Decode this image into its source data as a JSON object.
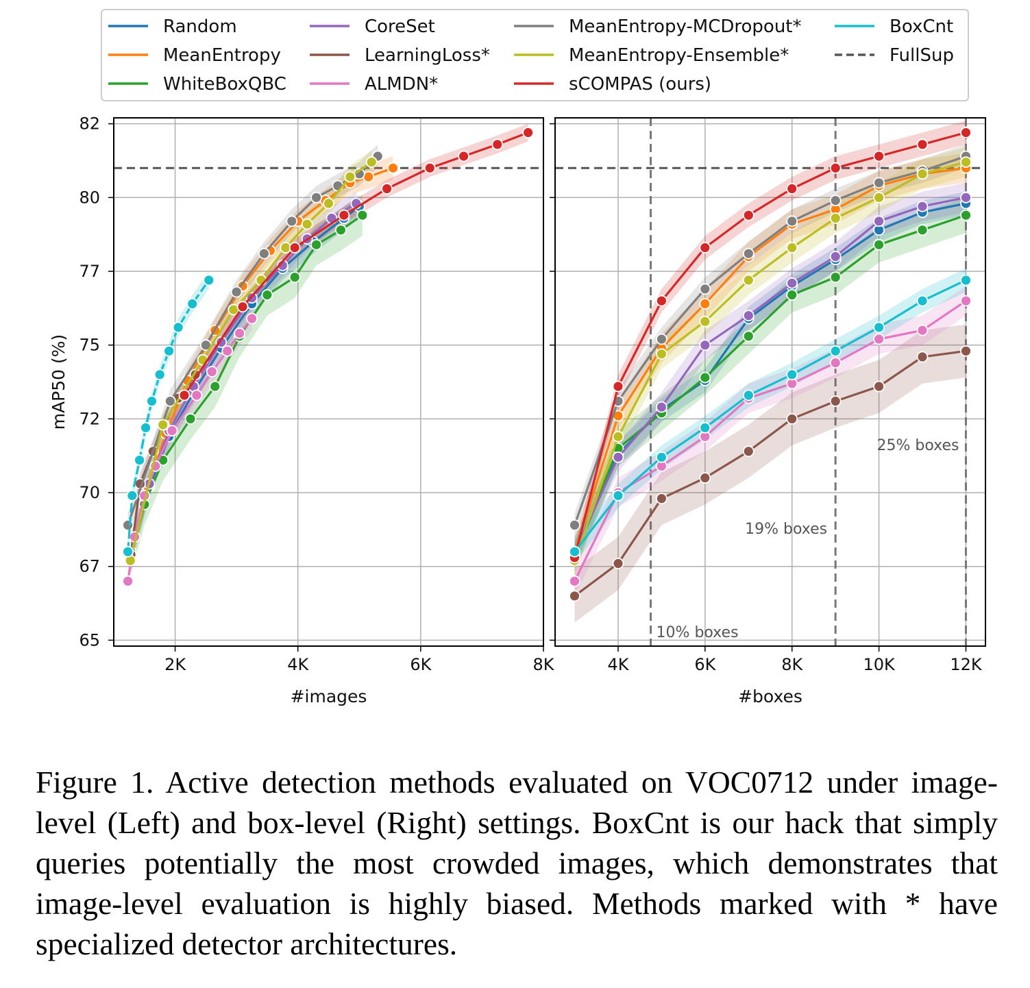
{
  "chart_data": [
    {
      "type": "line",
      "panel": "left",
      "xlabel": "#images",
      "ylabel": "mAP50 (%)",
      "xlim": [
        1000,
        8000
      ],
      "ylim": [
        64.8,
        82.7
      ],
      "xticks": [
        2000,
        4000,
        6000,
        8000
      ],
      "xtick_labels": [
        "2K",
        "4K",
        "6K",
        "8K"
      ],
      "yticks": [
        65,
        67.5,
        70,
        72.5,
        75,
        77.5,
        80,
        82.5
      ],
      "ytick_labels": [
        "65",
        "67",
        "70",
        "72",
        "75",
        "77",
        "80",
        "82"
      ],
      "grid": true,
      "reference_lines": [
        {
          "name": "FullSup",
          "axis": "y",
          "value": 81.0,
          "color": "#555555",
          "style": "dashed"
        }
      ],
      "series": [
        {
          "name": "Random",
          "color": "#1f77b4",
          "band": 0.4,
          "x": [
            1280,
            1580,
            1900,
            2300,
            2750,
            3250,
            3750,
            4250,
            4750,
            5000
          ],
          "y": [
            67.9,
            70.2,
            71.9,
            73.4,
            74.9,
            76.4,
            77.6,
            78.5,
            79.3,
            79.7
          ]
        },
        {
          "name": "MeanEntropy",
          "color": "#ff7f0e",
          "band": 0.4,
          "x": [
            1280,
            1560,
            1850,
            2200,
            2650,
            3100,
            3550,
            4000,
            4450,
            4850,
            5150,
            5550
          ],
          "y": [
            68.0,
            70.2,
            72.0,
            73.8,
            75.5,
            77.0,
            78.2,
            79.2,
            79.9,
            80.5,
            80.7,
            81.0
          ]
        },
        {
          "name": "WhiteBoxQBC",
          "color": "#2ca02c",
          "band": 0.7,
          "x": [
            1280,
            1500,
            1800,
            2250,
            2650,
            3050,
            3500,
            3950,
            4300,
            4700,
            5050
          ],
          "y": [
            67.9,
            69.6,
            71.1,
            72.5,
            73.6,
            75.3,
            76.7,
            77.3,
            78.4,
            78.9,
            79.4
          ]
        },
        {
          "name": "CoreSet",
          "color": "#9467bd",
          "band": 0.4,
          "x": [
            1280,
            1580,
            1900,
            2300,
            2750,
            3250,
            3750,
            4150,
            4550,
            4950
          ],
          "y": [
            68.0,
            70.3,
            72.1,
            73.6,
            75.1,
            76.6,
            77.7,
            78.6,
            79.3,
            79.8
          ]
        },
        {
          "name": "LearningLoss*",
          "color": "#8c564b",
          "band": 0.4,
          "x": [
            1280,
            1430,
            1640,
            1820,
            2050,
            2330
          ],
          "y": [
            67.9,
            70.3,
            71.4,
            72.3,
            73.2,
            74.0
          ]
        },
        {
          "name": "ALMDN*",
          "color": "#e377c2",
          "band": 0.4,
          "x": [
            1230,
            1340,
            1500,
            1680,
            1950,
            2350,
            2600,
            2850,
            3050,
            3250
          ],
          "y": [
            67.0,
            68.5,
            69.9,
            70.9,
            72.1,
            73.3,
            74.1,
            74.8,
            75.4,
            75.9
          ]
        },
        {
          "name": "MeanEntropy-MCDropout*",
          "color": "#7f7f7f",
          "band": 0.4,
          "x": [
            1230,
            1920,
            2500,
            3000,
            3450,
            3900,
            4300,
            4650,
            5000,
            5300
          ],
          "y": [
            68.9,
            73.1,
            75.0,
            76.8,
            78.1,
            79.2,
            80.0,
            80.4,
            80.8,
            81.4
          ]
        },
        {
          "name": "MeanEntropy-Ensemble*",
          "color": "#bcbd22",
          "band": 0.4,
          "x": [
            1270,
            1800,
            2450,
            2950,
            3400,
            3800,
            4150,
            4500,
            4850,
            5200
          ],
          "y": [
            67.7,
            72.3,
            74.5,
            76.2,
            77.2,
            78.3,
            79.1,
            79.8,
            80.7,
            81.2
          ]
        },
        {
          "name": "sCOMPAS (ours)",
          "color": "#d62728",
          "band": 0.3,
          "x": [
            2150,
            3100,
            3950,
            4750,
            5450,
            6150,
            6700,
            7250,
            7750
          ],
          "y": [
            73.3,
            76.3,
            78.3,
            79.4,
            80.3,
            81.0,
            81.4,
            81.8,
            82.2
          ]
        },
        {
          "name": "BoxCnt",
          "color": "#17becf",
          "band": 0.3,
          "x": [
            1230,
            1300,
            1420,
            1520,
            1620,
            1750,
            1900,
            2050,
            2280,
            2550
          ],
          "y": [
            68.0,
            69.9,
            71.1,
            72.2,
            73.1,
            74.0,
            74.8,
            75.6,
            76.4,
            77.2
          ]
        }
      ]
    },
    {
      "type": "line",
      "panel": "right",
      "xlabel": "#boxes",
      "ylabel": "",
      "xlim": [
        2550,
        12450
      ],
      "ylim": [
        64.8,
        82.7
      ],
      "xticks": [
        4000,
        6000,
        8000,
        10000,
        12000
      ],
      "xtick_labels": [
        "4K",
        "6K",
        "8K",
        "10K",
        "12K"
      ],
      "grid": true,
      "reference_lines": [
        {
          "name": "FullSup",
          "axis": "y",
          "value": 81.0,
          "color": "#555555",
          "style": "dashed"
        },
        {
          "axis": "x",
          "value": 4750,
          "color": "#777777",
          "style": "dashed",
          "label": "10% boxes"
        },
        {
          "axis": "x",
          "value": 9000,
          "color": "#777777",
          "style": "dashed",
          "label": "19% boxes"
        },
        {
          "axis": "x",
          "value": 12000,
          "color": "#777777",
          "style": "dashed",
          "label": "25% boxes"
        }
      ],
      "annotations": [
        "10% boxes",
        "19% boxes",
        "25% boxes"
      ],
      "series": [
        {
          "name": "Random",
          "color": "#1f77b4",
          "band": 0.4,
          "x": [
            3000,
            4000,
            5000,
            6000,
            7000,
            8000,
            9000,
            10000,
            11000,
            12000
          ],
          "y": [
            67.9,
            71.3,
            72.8,
            73.8,
            75.9,
            77.0,
            77.9,
            78.9,
            79.5,
            79.8
          ]
        },
        {
          "name": "MeanEntropy",
          "color": "#ff7f0e",
          "band": 0.5,
          "x": [
            3000,
            4000,
            5000,
            6000,
            7000,
            8000,
            9000,
            10000,
            11000,
            12000
          ],
          "y": [
            68.0,
            72.6,
            74.9,
            76.4,
            78.0,
            79.1,
            79.6,
            80.4,
            80.8,
            81.0
          ]
        },
        {
          "name": "WhiteBoxQBC",
          "color": "#2ca02c",
          "band": 0.6,
          "x": [
            3000,
            4000,
            5000,
            6000,
            7000,
            8000,
            9000,
            10000,
            11000,
            12000
          ],
          "y": [
            67.9,
            71.5,
            72.7,
            73.9,
            75.3,
            76.7,
            77.3,
            78.4,
            78.9,
            79.4
          ]
        },
        {
          "name": "CoreSet",
          "color": "#9467bd",
          "band": 0.5,
          "x": [
            3000,
            4000,
            5000,
            6000,
            7000,
            8000,
            9000,
            10000,
            11000,
            12000
          ],
          "y": [
            68.0,
            71.2,
            72.9,
            75.0,
            76.0,
            77.1,
            78.0,
            79.2,
            79.7,
            80.0
          ]
        },
        {
          "name": "LearningLoss*",
          "color": "#8c564b",
          "band": 0.9,
          "x": [
            3000,
            4000,
            5000,
            6000,
            7000,
            8000,
            9000,
            10000,
            11000,
            12000
          ],
          "y": [
            66.5,
            67.6,
            69.8,
            70.5,
            71.4,
            72.5,
            73.1,
            73.6,
            74.6,
            74.8
          ]
        },
        {
          "name": "ALMDN*",
          "color": "#e377c2",
          "band": 0.5,
          "x": [
            3000,
            4000,
            5000,
            6000,
            7000,
            8000,
            9000,
            10000,
            11000,
            12000
          ],
          "y": [
            67.0,
            70.0,
            70.9,
            71.9,
            73.2,
            73.7,
            74.4,
            75.2,
            75.5,
            76.5
          ]
        },
        {
          "name": "MeanEntropy-MCDropout*",
          "color": "#7f7f7f",
          "band": 0.4,
          "x": [
            3000,
            4000,
            5000,
            6000,
            7000,
            8000,
            9000,
            10000,
            11000,
            12000
          ],
          "y": [
            68.9,
            73.1,
            75.2,
            76.9,
            78.1,
            79.2,
            79.9,
            80.5,
            80.9,
            81.4
          ]
        },
        {
          "name": "MeanEntropy-Ensemble*",
          "color": "#bcbd22",
          "band": 0.5,
          "x": [
            3000,
            4000,
            5000,
            6000,
            7000,
            8000,
            9000,
            10000,
            11000,
            12000
          ],
          "y": [
            67.7,
            71.9,
            74.7,
            75.8,
            77.2,
            78.3,
            79.3,
            80.0,
            80.8,
            81.2
          ]
        },
        {
          "name": "sCOMPAS (ours)",
          "color": "#d62728",
          "band": 0.4,
          "x": [
            3000,
            4000,
            5000,
            6000,
            7000,
            8000,
            9000,
            10000,
            11000,
            12000
          ],
          "y": [
            67.8,
            73.6,
            76.5,
            78.3,
            79.4,
            80.3,
            81.0,
            81.4,
            81.8,
            82.2
          ]
        },
        {
          "name": "BoxCnt",
          "color": "#17becf",
          "band": 0.4,
          "x": [
            3000,
            4000,
            5000,
            6000,
            7000,
            8000,
            9000,
            10000,
            11000,
            12000
          ],
          "y": [
            68.0,
            69.9,
            71.2,
            72.2,
            73.3,
            74.0,
            74.8,
            75.6,
            76.5,
            77.2
          ]
        }
      ]
    }
  ],
  "legend": {
    "location": "top",
    "columns": [
      [
        {
          "name": "Random",
          "color": "#1f77b4",
          "style": "solid"
        },
        {
          "name": "MeanEntropy",
          "color": "#ff7f0e",
          "style": "solid"
        },
        {
          "name": "WhiteBoxQBC",
          "color": "#2ca02c",
          "style": "solid"
        }
      ],
      [
        {
          "name": "CoreSet",
          "color": "#9467bd",
          "style": "solid"
        },
        {
          "name": "LearningLoss*",
          "color": "#8c564b",
          "style": "solid"
        },
        {
          "name": "ALMDN*",
          "color": "#e377c2",
          "style": "solid"
        }
      ],
      [
        {
          "name": "MeanEntropy-MCDropout*",
          "color": "#7f7f7f",
          "style": "solid"
        },
        {
          "name": "MeanEntropy-Ensemble*",
          "color": "#bcbd22",
          "style": "solid"
        },
        {
          "name": "sCOMPAS (ours)",
          "color": "#d62728",
          "style": "solid"
        }
      ],
      [
        {
          "name": "BoxCnt",
          "color": "#17becf",
          "style": "solid"
        },
        {
          "name": "FullSup",
          "color": "#555555",
          "style": "dashed"
        }
      ]
    ]
  },
  "caption": "Figure 1.  Active detection methods evaluated on VOC0712 under image-level (Left) and box-level (Right) settings.  BoxCnt is our hack that simply queries potentially the most crowded images, which demonstrates that image-level evaluation is highly biased. Methods marked with * have specialized detector architectures."
}
